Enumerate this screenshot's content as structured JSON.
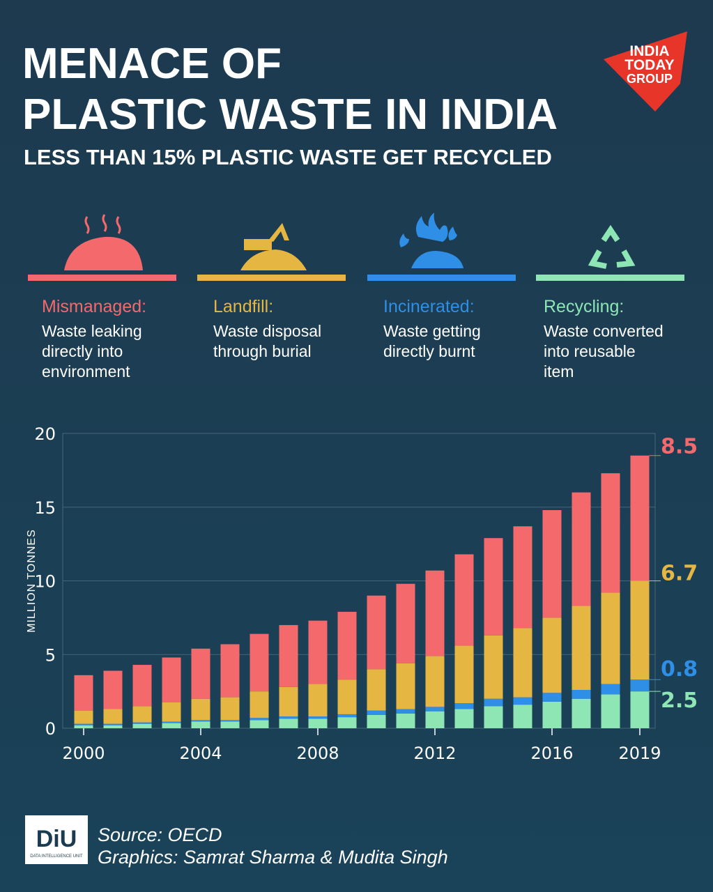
{
  "header": {
    "title": [
      "MENACE OF",
      "PLASTIC WASTE IN INDIA"
    ],
    "subtitle": "LESS THAN 15% PLASTIC WASTE GET RECYCLED",
    "logo": [
      "INDIA",
      "TODAY",
      "GROUP"
    ]
  },
  "chart_data": {
    "type": "stacked-bar",
    "y_label": "MILLION TONNES",
    "x": [
      2000,
      2001,
      2002,
      2003,
      2004,
      2005,
      2006,
      2007,
      2008,
      2009,
      2010,
      2011,
      2012,
      2013,
      2014,
      2015,
      2016,
      2017,
      2018,
      2019
    ],
    "xticks": [
      2000,
      2004,
      2008,
      2012,
      2016,
      2019
    ],
    "ylim": [
      0,
      20
    ],
    "yticks": [
      0,
      5,
      10,
      15,
      20
    ],
    "grid": true,
    "series": [
      {
        "name": "Mismanaged:",
        "description": [
          "Waste leaking",
          "directly into",
          "environment"
        ],
        "color": "#f4696b",
        "values": [
          2.4,
          2.6,
          2.8,
          3.05,
          3.4,
          3.6,
          3.9,
          4.2,
          4.3,
          4.6,
          5.0,
          5.4,
          5.8,
          6.2,
          6.6,
          6.9,
          7.3,
          7.7,
          8.1,
          8.5
        ]
      },
      {
        "name": "Landfill:",
        "description": [
          "Waste disposal",
          "through burial"
        ],
        "color": "#e6b643",
        "values": [
          0.9,
          1.0,
          1.1,
          1.3,
          1.45,
          1.55,
          1.8,
          2.0,
          2.2,
          2.35,
          2.8,
          3.1,
          3.45,
          3.9,
          4.3,
          4.7,
          5.1,
          5.7,
          6.2,
          6.7
        ]
      },
      {
        "name": "Incinerated:",
        "description": [
          "Waste getting",
          "directly burnt"
        ],
        "color": "#2f8fe6",
        "values": [
          0.1,
          0.1,
          0.1,
          0.1,
          0.1,
          0.1,
          0.15,
          0.15,
          0.15,
          0.2,
          0.3,
          0.3,
          0.3,
          0.4,
          0.5,
          0.5,
          0.6,
          0.6,
          0.7,
          0.8
        ]
      },
      {
        "name": "Recycling:",
        "description": [
          "Waste converted",
          "into reusable",
          "item"
        ],
        "color": "#8ee6b4",
        "values": [
          0.2,
          0.2,
          0.3,
          0.35,
          0.45,
          0.45,
          0.55,
          0.65,
          0.65,
          0.75,
          0.9,
          1.0,
          1.15,
          1.3,
          1.5,
          1.6,
          1.8,
          2.0,
          2.3,
          2.5
        ]
      }
    ]
  },
  "footer": {
    "logo": "DiU",
    "logo_sub": "DATA INTELLIGENCE UNIT",
    "source": "Source: OECD",
    "credits": "Graphics: Samrat Sharma & Mudita Singh"
  }
}
